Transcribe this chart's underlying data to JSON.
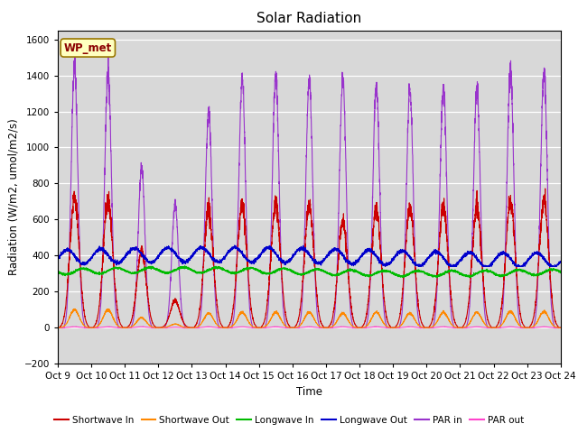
{
  "title": "Solar Radiation",
  "ylabel": "Radiation (W/m2, umol/m2/s)",
  "xlabel": "Time",
  "ylim": [
    -200,
    1650
  ],
  "yticks": [
    -200,
    0,
    200,
    400,
    600,
    800,
    1000,
    1200,
    1400,
    1600
  ],
  "x_tick_labels": [
    "Oct 9",
    "Oct 10",
    "Oct 11",
    "Oct 12",
    "Oct 13",
    "Oct 14",
    "Oct 15",
    "Oct 16",
    "Oct 17",
    "Oct 18",
    "Oct 19",
    "Oct 20",
    "Oct 21",
    "Oct 22",
    "Oct 23",
    "Oct 24"
  ],
  "station_label": "WP_met",
  "plot_bg_color": "#d8d8d8",
  "colors": {
    "shortwave_in": "#cc0000",
    "shortwave_out": "#ff8800",
    "longwave_in": "#00bb00",
    "longwave_out": "#0000cc",
    "par_in": "#9933cc",
    "par_out": "#ff44cc"
  },
  "legend": [
    {
      "label": "Shortwave In",
      "color": "#cc0000"
    },
    {
      "label": "Shortwave Out",
      "color": "#ff8800"
    },
    {
      "label": "Longwave In",
      "color": "#00bb00"
    },
    {
      "label": "Longwave Out",
      "color": "#0000cc"
    },
    {
      "label": "PAR in",
      "color": "#9933cc"
    },
    {
      "label": "PAR out",
      "color": "#ff44cc"
    }
  ],
  "sw_in_peaks": [
    720,
    710,
    420,
    150,
    640,
    680,
    680,
    680,
    590,
    650,
    660,
    670,
    670,
    700,
    700
  ],
  "sw_out_peaks": [
    100,
    100,
    55,
    20,
    80,
    85,
    85,
    85,
    80,
    85,
    80,
    85,
    85,
    90,
    90
  ],
  "par_in_peaks": [
    1450,
    1420,
    890,
    680,
    1200,
    1370,
    1390,
    1370,
    1380,
    1340,
    1320,
    1340,
    1320,
    1430,
    1420
  ],
  "par_out_peaks": [
    5,
    5,
    5,
    2,
    5,
    5,
    5,
    5,
    5,
    5,
    5,
    5,
    5,
    5,
    5
  ],
  "lw_in_base": 310,
  "lw_out_base": 390
}
